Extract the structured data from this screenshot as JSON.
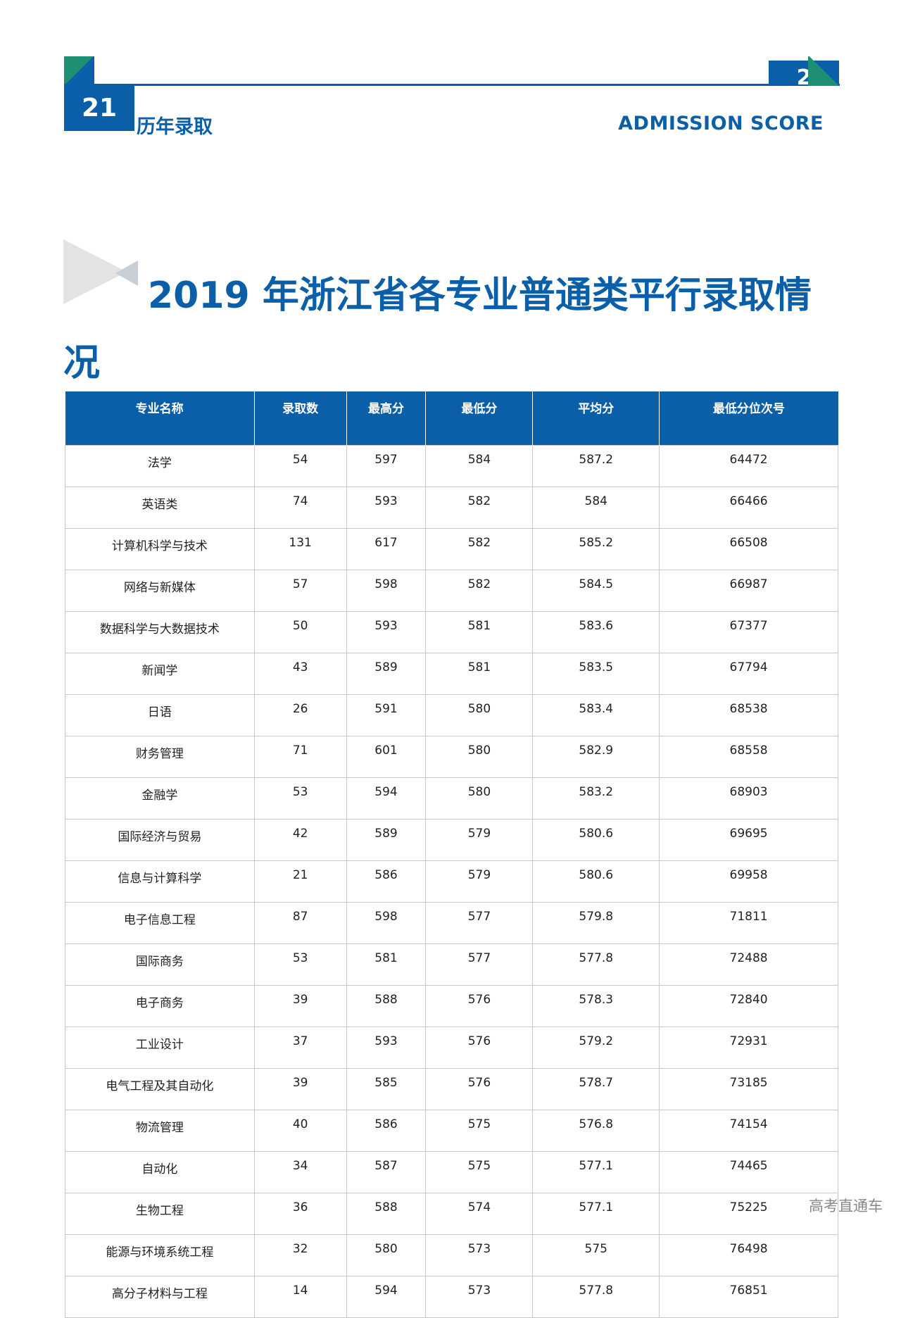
{
  "header": {
    "page_number": "21",
    "left_label": "历年录取",
    "right_box_text": "2",
    "right_label": "ADMISSION SCORE"
  },
  "section": {
    "title": "2019 年浙江省各专业普通类平行录取情况"
  },
  "table": {
    "columns": [
      "专业名称",
      "录取数",
      "最高分",
      "最低分",
      "平均分",
      "最低分位次号"
    ],
    "rows": [
      [
        "法学",
        "54",
        "597",
        "584",
        "587.2",
        "64472"
      ],
      [
        "英语类",
        "74",
        "593",
        "582",
        "584",
        "66466"
      ],
      [
        "计算机科学与技术",
        "131",
        "617",
        "582",
        "585.2",
        "66508"
      ],
      [
        "网络与新媒体",
        "57",
        "598",
        "582",
        "584.5",
        "66987"
      ],
      [
        "数据科学与大数据技术",
        "50",
        "593",
        "581",
        "583.6",
        "67377"
      ],
      [
        "新闻学",
        "43",
        "589",
        "581",
        "583.5",
        "67794"
      ],
      [
        "日语",
        "26",
        "591",
        "580",
        "583.4",
        "68538"
      ],
      [
        "财务管理",
        "71",
        "601",
        "580",
        "582.9",
        "68558"
      ],
      [
        "金融学",
        "53",
        "594",
        "580",
        "583.2",
        "68903"
      ],
      [
        "国际经济与贸易",
        "42",
        "589",
        "579",
        "580.6",
        "69695"
      ],
      [
        "信息与计算科学",
        "21",
        "586",
        "579",
        "580.6",
        "69958"
      ],
      [
        "电子信息工程",
        "87",
        "598",
        "577",
        "579.8",
        "71811"
      ],
      [
        "国际商务",
        "53",
        "581",
        "577",
        "577.8",
        "72488"
      ],
      [
        "电子商务",
        "39",
        "588",
        "576",
        "578.3",
        "72840"
      ],
      [
        "工业设计",
        "37",
        "593",
        "576",
        "579.2",
        "72931"
      ],
      [
        "电气工程及其自动化",
        "39",
        "585",
        "576",
        "578.7",
        "73185"
      ],
      [
        "物流管理",
        "40",
        "586",
        "575",
        "576.8",
        "74154"
      ],
      [
        "自动化",
        "34",
        "587",
        "575",
        "577.1",
        "74465"
      ],
      [
        "生物工程",
        "36",
        "588",
        "574",
        "577.1",
        "75225"
      ],
      [
        "能源与环境系统工程",
        "32",
        "580",
        "573",
        "575",
        "76498"
      ],
      [
        "高分子材料与工程",
        "14",
        "594",
        "573",
        "577.8",
        "76851"
      ]
    ]
  },
  "footer": {
    "watermark": "高考直通车"
  }
}
